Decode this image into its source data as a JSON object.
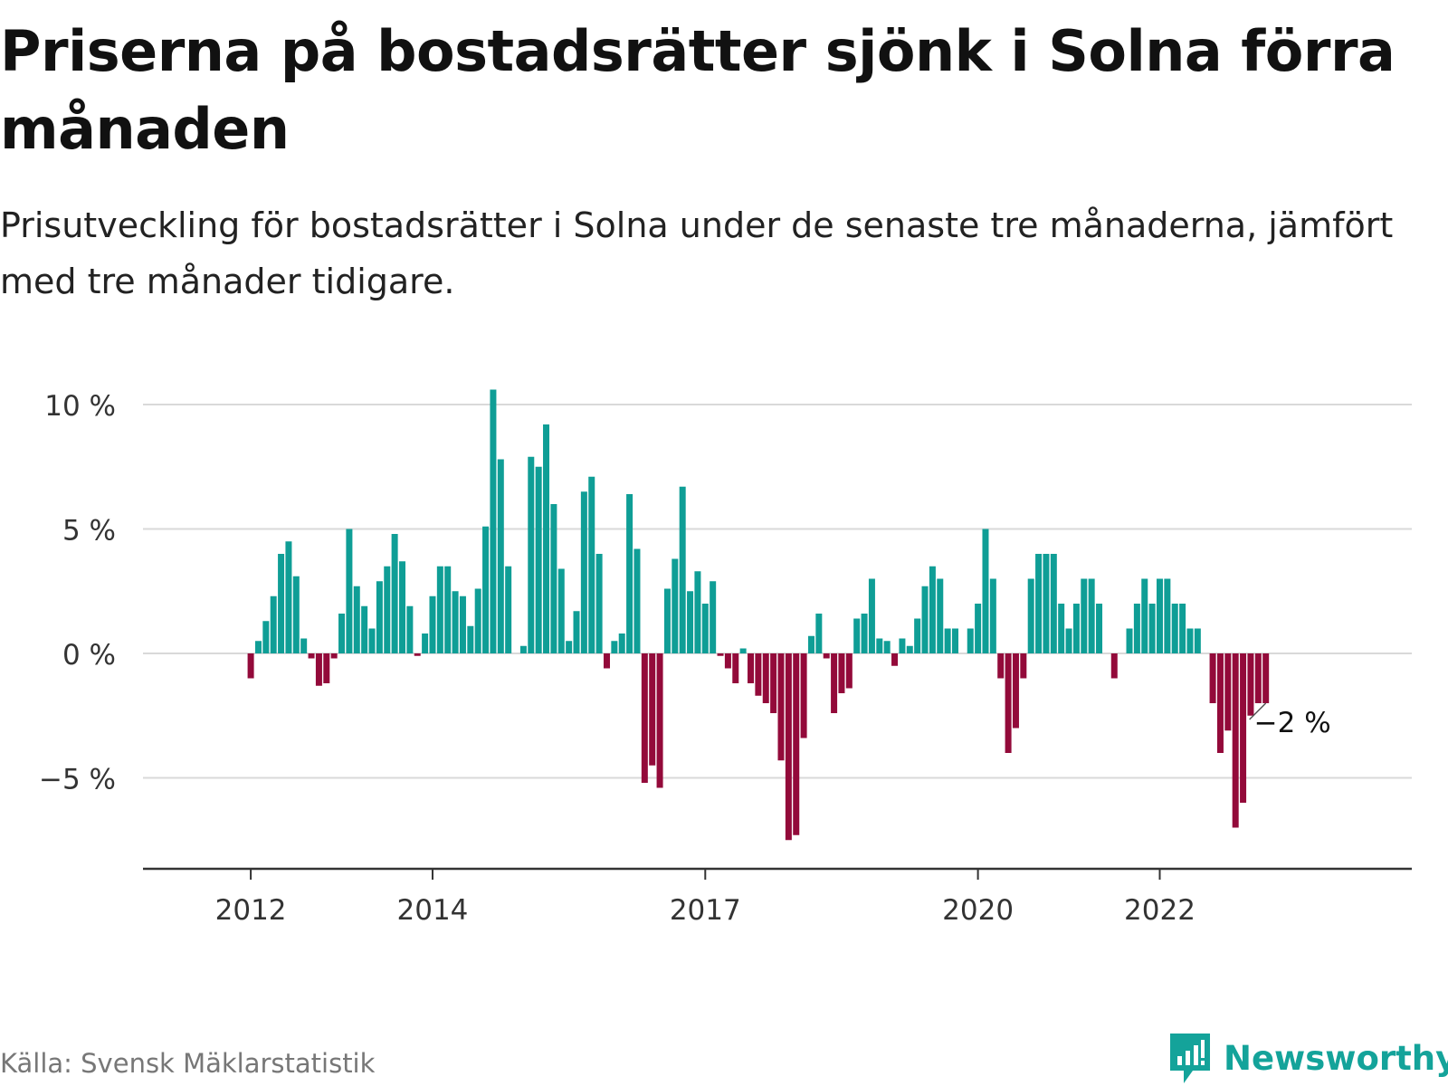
{
  "header": {
    "title": "Priserna på bostadsrätter sjönk i Solna förra månaden",
    "subtitle": "Prisutveckling för bostadsrätter i Solna under de senaste tre månaderna, jämfört med tre månader tidigare."
  },
  "footer": {
    "source": "Källa: Svensk Mäklarstatistik",
    "logo_text": "Newsworthy"
  },
  "colors": {
    "positive": "#0f9e96",
    "negative": "#930a3a",
    "grid": "#d9d9d9",
    "axis": "#333333"
  },
  "chart_data": {
    "type": "bar",
    "ylim": [
      -8.5,
      11
    ],
    "y_ticks": [
      {
        "value": 10,
        "label": "10 %"
      },
      {
        "value": 5,
        "label": "5 %"
      },
      {
        "value": 0,
        "label": "0 %"
      },
      {
        "value": -5,
        "label": "−5 %"
      }
    ],
    "x_ticks": [
      {
        "value": "2012-01",
        "label": "2012"
      },
      {
        "value": "2014-01",
        "label": "2014"
      },
      {
        "value": "2017-01",
        "label": "2017"
      },
      {
        "value": "2020-01",
        "label": "2020"
      },
      {
        "value": "2022-01",
        "label": "2022"
      }
    ],
    "start_month": "2011-06",
    "values": [
      0,
      0,
      0,
      0,
      0,
      0,
      0,
      -1,
      0.5,
      1.3,
      2.3,
      4,
      4.5,
      3.1,
      0.6,
      -0.2,
      -1.3,
      -1.2,
      -0.2,
      1.6,
      5,
      2.7,
      1.9,
      1,
      2.9,
      3.5,
      4.8,
      3.7,
      1.9,
      -0.1,
      0.8,
      2.3,
      3.5,
      3.5,
      2.5,
      2.3,
      1.1,
      2.6,
      5.1,
      10.6,
      7.8,
      3.5,
      0,
      0.3,
      7.9,
      7.5,
      9.2,
      6,
      3.4,
      0.5,
      1.7,
      6.5,
      7.1,
      4,
      -0.6,
      0.5,
      0.8,
      6.4,
      4.2,
      -5.2,
      -4.5,
      -5.4,
      2.6,
      3.8,
      6.7,
      2.5,
      3.3,
      2,
      2.9,
      -0.1,
      -0.6,
      -1.2,
      0.2,
      -1.2,
      -1.7,
      -2,
      -2.4,
      -4.3,
      -7.5,
      -7.3,
      -3.4,
      0.7,
      1.6,
      -0.2,
      -2.4,
      -1.6,
      -1.4,
      1.4,
      1.6,
      3,
      0.6,
      0.5,
      -0.5,
      0.6,
      0.3,
      1.4,
      2.7,
      3.5,
      3,
      1,
      1,
      0,
      1,
      2,
      5,
      3,
      -1,
      -4,
      -3,
      -1,
      3,
      4,
      4,
      4,
      2,
      1,
      2,
      3,
      3,
      2,
      0,
      -1,
      0,
      1,
      2,
      3,
      2,
      3,
      3,
      2,
      2,
      1,
      1,
      0,
      -2,
      -4,
      -3.1,
      -7,
      -6,
      -2.5,
      -2,
      -2
    ],
    "annotation": {
      "label": "−2 %"
    }
  }
}
